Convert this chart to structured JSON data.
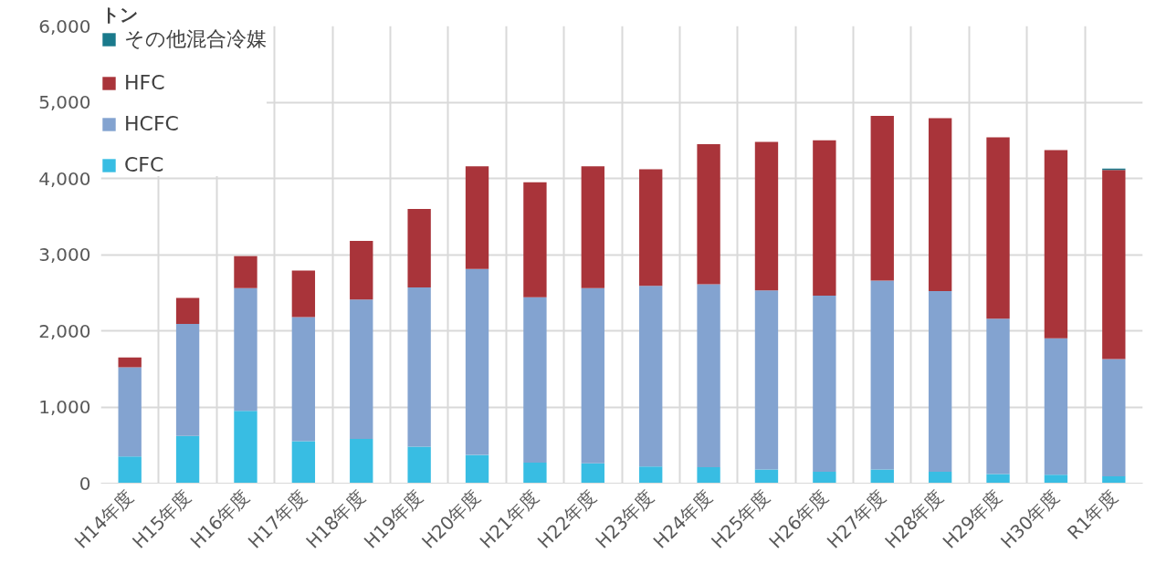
{
  "chart_data": {
    "type": "bar",
    "stacked": true,
    "ylabel": "トン",
    "categories": [
      "H14年度",
      "H15年度",
      "H16年度",
      "H17年度",
      "H18年度",
      "H19年度",
      "H20年度",
      "H21年度",
      "H22年度",
      "H23年度",
      "H24年度",
      "H25年度",
      "H26年度",
      "H27年度",
      "H28年度",
      "H29年度",
      "H30年度",
      "R1年度"
    ],
    "series": [
      {
        "name": "CFC",
        "color": "#38bde3",
        "values": [
          350,
          620,
          950,
          550,
          580,
          480,
          370,
          270,
          260,
          220,
          210,
          180,
          150,
          180,
          150,
          120,
          110,
          90
        ]
      },
      {
        "name": "HCFC",
        "color": "#83a3d0",
        "values": [
          1170,
          1470,
          1610,
          1630,
          1830,
          2090,
          2440,
          2170,
          2300,
          2370,
          2400,
          2350,
          2310,
          2480,
          2370,
          2040,
          1790,
          1540
        ]
      },
      {
        "name": "HFC",
        "color": "#a9343a",
        "values": [
          130,
          340,
          420,
          610,
          770,
          1030,
          1350,
          1510,
          1600,
          1530,
          1840,
          1950,
          2040,
          2160,
          2270,
          2380,
          2470,
          2480
        ]
      },
      {
        "name": "その他混合冷媒",
        "color": "#1a7a8c",
        "values": [
          0,
          0,
          0,
          0,
          0,
          0,
          0,
          0,
          0,
          0,
          0,
          0,
          0,
          0,
          0,
          0,
          0,
          20
        ]
      }
    ],
    "ylim": [
      0,
      6000
    ],
    "yticks": [
      0,
      {
        "value": 1000,
        "label": "1,000"
      },
      {
        "value": 2000,
        "label": "2,000"
      },
      {
        "value": 3000,
        "label": "3,000"
      },
      {
        "value": 4000,
        "label": "4,000"
      },
      {
        "value": 5000,
        "label": "5,000"
      },
      {
        "value": 6000,
        "label": "6,000"
      }
    ],
    "grid": true,
    "legend": "top left"
  }
}
